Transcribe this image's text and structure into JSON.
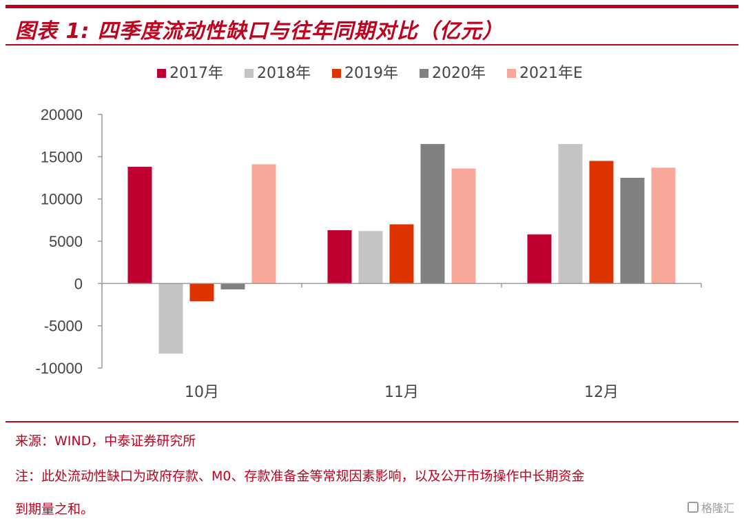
{
  "header": {
    "title": "图表 1:  四季度流动性缺口与往年同期对比（亿元）"
  },
  "chart_data": {
    "type": "bar",
    "title": "四季度流动性缺口与往年同期对比（亿元）",
    "categories": [
      "10月",
      "11月",
      "12月"
    ],
    "series": [
      {
        "name": "2017年",
        "color": "#c00030",
        "values": [
          13800,
          6300,
          5800
        ]
      },
      {
        "name": "2018年",
        "color": "#c4c4c4",
        "values": [
          -8300,
          6200,
          16500
        ]
      },
      {
        "name": "2019年",
        "color": "#dd3300",
        "values": [
          -2100,
          7000,
          14500
        ]
      },
      {
        "name": "2020年",
        "color": "#808080",
        "values": [
          -700,
          16500,
          12500
        ]
      },
      {
        "name": "2021年E",
        "color": "#f8a898",
        "values": [
          14100,
          13600,
          13700
        ]
      }
    ],
    "yticks": [
      20000,
      15000,
      10000,
      5000,
      0,
      -5000,
      -10000
    ],
    "ylim": [
      -10000,
      20000
    ],
    "xlabel": "",
    "ylabel": "",
    "legend_position": "top"
  },
  "footer": {
    "source": "来源：WIND，中泰证券研究所",
    "note_line1": "注：此处流动性缺口为政府存款、M0、存款准备金等常规因素影响，以及公开市场操作中长期资金",
    "note_line2": "到期量之和。"
  },
  "watermark": {
    "text": "格隆汇"
  }
}
